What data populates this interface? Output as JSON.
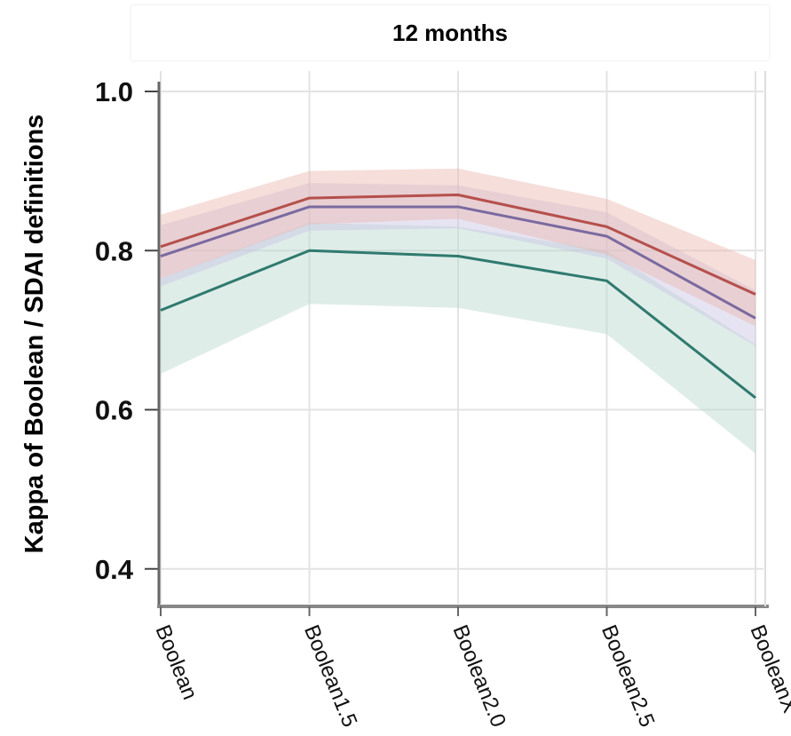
{
  "chart_data": {
    "type": "line",
    "title": "12 months",
    "xlabel": "",
    "ylabel": "Kappa of Boolean / SDAI definitions",
    "categories": [
      "Boolean",
      "Boolean1.5",
      "Boolean2.0",
      "Boolean2.5",
      "BooleanX"
    ],
    "ylim": [
      0.36,
      1.03
    ],
    "yticks": [
      "1.0",
      "0.8",
      "0.6",
      "0.4"
    ],
    "ytick_values": [
      1.0,
      0.8,
      0.6,
      0.4
    ],
    "grid": true,
    "series": [
      {
        "color": "#b5504c",
        "band_color": "#eab5ad",
        "values": [
          0.805,
          0.866,
          0.87,
          0.83,
          0.745
        ],
        "lower": [
          0.765,
          0.833,
          0.84,
          0.795,
          0.705
        ],
        "upper": [
          0.845,
          0.9,
          0.903,
          0.865,
          0.788
        ]
      },
      {
        "color": "#7a6aa0",
        "band_color": "#c8c3e3",
        "values": [
          0.793,
          0.855,
          0.855,
          0.818,
          0.715
        ],
        "lower": [
          0.755,
          0.825,
          0.828,
          0.79,
          0.68
        ],
        "upper": [
          0.832,
          0.885,
          0.882,
          0.848,
          0.75
        ]
      },
      {
        "color": "#2f7a6e",
        "band_color": "#b8d6ce",
        "values": [
          0.725,
          0.8,
          0.793,
          0.762,
          0.615
        ],
        "lower": [
          0.645,
          0.733,
          0.728,
          0.695,
          0.545
        ],
        "upper": [
          0.765,
          0.835,
          0.83,
          0.8,
          0.682
        ]
      }
    ]
  }
}
